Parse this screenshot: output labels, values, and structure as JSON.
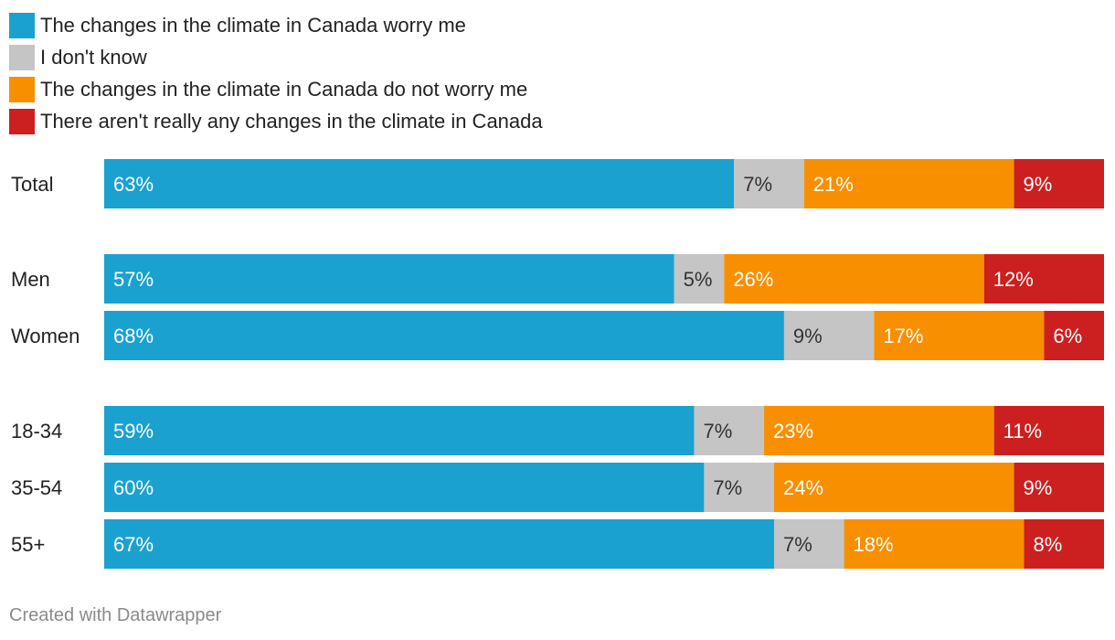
{
  "chart_data": {
    "type": "stacked-bar-horizontal",
    "title": "",
    "xlabel": "",
    "ylabel": "",
    "xlim": [
      0,
      100
    ],
    "legend_position": "top-left",
    "series": [
      {
        "name": "The changes in the climate in Canada worry me",
        "color": "#1aa1d0",
        "label_color": "#ffffff"
      },
      {
        "name": "I don't know",
        "color": "#c5c5c5",
        "label_color": "#333333"
      },
      {
        "name": "The changes in the climate in Canada do not worry me",
        "color": "#f88f01",
        "label_color": "#ffffff"
      },
      {
        "name": "There aren't really any changes in the climate in Canada",
        "color": "#cc1f1f",
        "label_color": "#ffffff"
      }
    ],
    "groups": [
      {
        "name": "total",
        "rows": [
          {
            "label": "Total",
            "values": [
              63,
              7,
              21,
              9
            ]
          }
        ]
      },
      {
        "name": "gender",
        "rows": [
          {
            "label": "Men",
            "values": [
              57,
              5,
              26,
              12
            ]
          },
          {
            "label": "Women",
            "values": [
              68,
              9,
              17,
              6
            ]
          }
        ]
      },
      {
        "name": "age",
        "rows": [
          {
            "label": "18-34",
            "values": [
              59,
              7,
              23,
              11
            ]
          },
          {
            "label": "35-54",
            "values": [
              60,
              7,
              24,
              9
            ]
          },
          {
            "label": "55+",
            "values": [
              67,
              7,
              18,
              8
            ]
          }
        ]
      }
    ]
  },
  "footer": {
    "credit": "Created with Datawrapper"
  }
}
